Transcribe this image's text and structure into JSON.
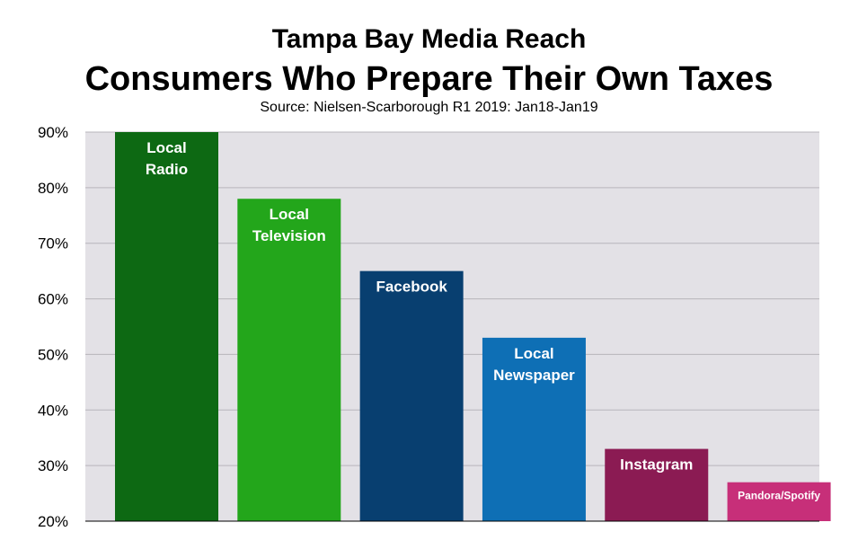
{
  "title": "Tampa Bay Media Reach",
  "subtitle": "Consumers Who Prepare Their Own Taxes",
  "source": "Source: Nielsen-Scarborough R1 2019: Jan18-Jan19",
  "chart_data": {
    "type": "bar",
    "title": "Tampa Bay Media Reach",
    "subtitle": "Consumers Who Prepare Their Own Taxes",
    "categories": [
      "Local Radio",
      "Local Television",
      "Facebook",
      "Local Newspaper",
      "Instagram",
      "Pandora/Spotify"
    ],
    "label_lines": [
      [
        "Local",
        "Radio"
      ],
      [
        "Local",
        "Television"
      ],
      [
        "Facebook"
      ],
      [
        "Local",
        "Newspaper"
      ],
      [
        "Instagram"
      ],
      [
        "Pandora/Spotify"
      ]
    ],
    "values": [
      90,
      78,
      65,
      53,
      33,
      27
    ],
    "colors": [
      "#0d6913",
      "#23a61b",
      "#083f70",
      "#0e6fb5",
      "#8b1b53",
      "#c72f79"
    ],
    "ylim": [
      20,
      90
    ],
    "yticks": [
      20,
      30,
      40,
      50,
      60,
      70,
      80,
      90
    ],
    "ytick_labels": [
      "20%",
      "30%",
      "40%",
      "50%",
      "60%",
      "70%",
      "80%",
      "90%"
    ],
    "xlabel": "",
    "ylabel": "",
    "grid": true,
    "plot_background": "#e3e1e6",
    "grid_color": "#b7b5bb"
  }
}
